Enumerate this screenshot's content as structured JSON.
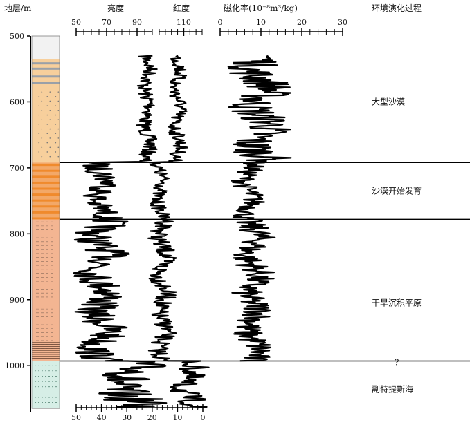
{
  "headers": {
    "depth": "地层/m",
    "brightness": "亮度",
    "redness": "红度",
    "susceptibility": "磁化率(10⁻⁸m³/kg)",
    "environment": "环境演化过程"
  },
  "colors": {
    "curve": "#000000",
    "boundary": "#000000",
    "desert_bg": "#f7cf9c",
    "orange_band": "#f08a2c",
    "plain_bg": "#f3b592",
    "marine_bg": "#d6eee6",
    "top_bg": "#f2f2f2"
  },
  "chart_data": {
    "type": "line",
    "y_axis": {
      "label": "地层/m",
      "range": [
        500,
        1070
      ],
      "ticks": [
        500,
        600,
        700,
        800,
        900,
        1000
      ],
      "reversed": true
    },
    "top_axis_brightness": {
      "range": [
        50,
        100
      ],
      "ticks": [
        50,
        70,
        90
      ]
    },
    "top_axis_redness": {
      "range": [
        90,
        125
      ],
      "ticks": [
        110
      ]
    },
    "top_axis_susceptibility": {
      "range": [
        0,
        30
      ],
      "ticks": [
        0,
        10,
        20,
        30
      ]
    },
    "bottom_axis": {
      "range": [
        50,
        0
      ],
      "ticks": [
        50,
        40,
        30,
        20,
        10,
        0
      ]
    },
    "boundaries": [
      692,
      778,
      993
    ],
    "stages": [
      {
        "name": "大型沙漠",
        "depth": 600
      },
      {
        "name": "沙漠开始发育",
        "depth": 735
      },
      {
        "name": "干旱沉积平原",
        "depth": 905
      },
      {
        "name": "?",
        "depth": 995
      },
      {
        "name": "副特提斯海",
        "depth": 1036
      }
    ],
    "series": [
      {
        "name": "亮度",
        "axis": "bottom",
        "depth_range": [
          530,
          1065
        ],
        "segments": [
          {
            "from": 530,
            "to": 692,
            "mean": 22,
            "amp": 3
          },
          {
            "from": 692,
            "to": 778,
            "mean": 40,
            "amp": 6
          },
          {
            "from": 778,
            "to": 993,
            "mean": 40,
            "amp": 8
          },
          {
            "from": 993,
            "to": 1065,
            "mean": 30,
            "amp": 12
          }
        ]
      },
      {
        "name": "红度",
        "axis": "bottom",
        "depth_range": [
          530,
          1065
        ],
        "segments": [
          {
            "from": 530,
            "to": 692,
            "mean": 10,
            "amp": 3
          },
          {
            "from": 692,
            "to": 778,
            "mean": 17,
            "amp": 3
          },
          {
            "from": 778,
            "to": 993,
            "mean": 16,
            "amp": 4
          },
          {
            "from": 993,
            "to": 1065,
            "mean": 6,
            "amp": 6
          }
        ]
      },
      {
        "name": "磁化率",
        "axis": "susceptibility",
        "depth_range": [
          530,
          993
        ],
        "segments": [
          {
            "from": 530,
            "to": 692,
            "mean": 10,
            "amp": 6
          },
          {
            "from": 692,
            "to": 778,
            "mean": 7,
            "amp": 3
          },
          {
            "from": 778,
            "to": 993,
            "mean": 8,
            "amp": 4
          }
        ]
      }
    ]
  }
}
